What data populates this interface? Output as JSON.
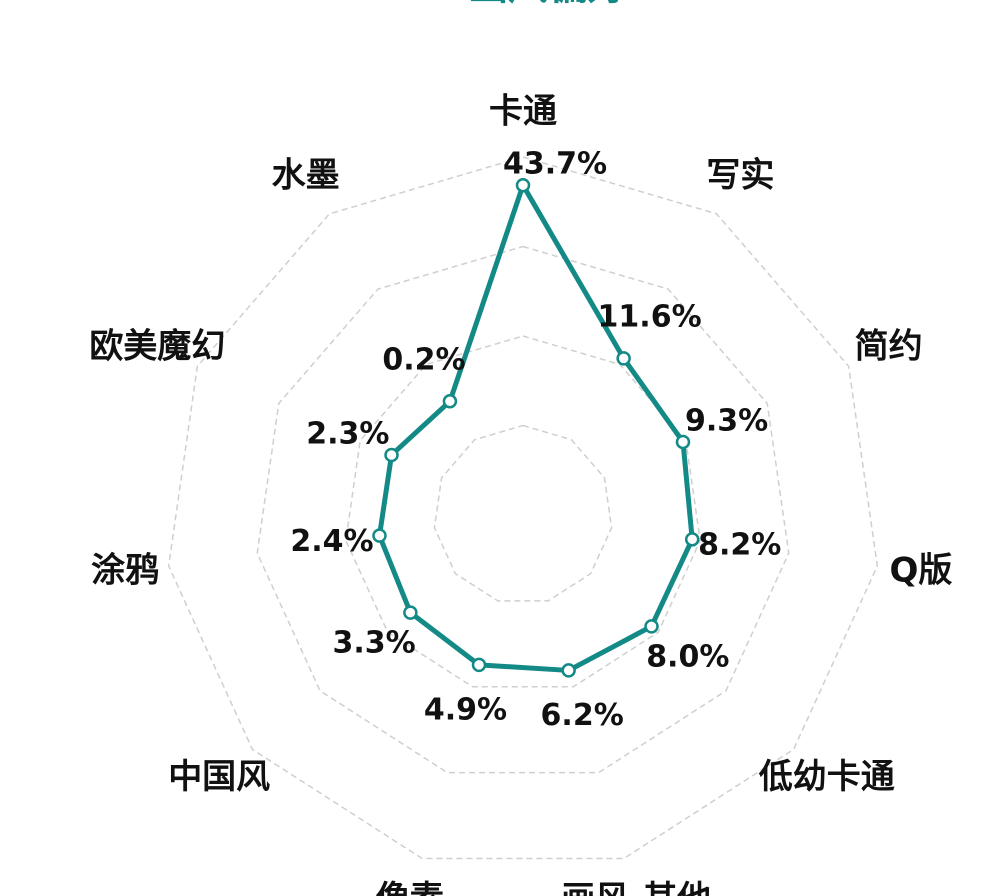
{
  "chart_data": {
    "type": "radar",
    "title": "画风偏好",
    "categories": [
      "卡通",
      "写实",
      "简约",
      "Q版",
      "低幼卡通",
      "画风-其他",
      "像素",
      "中国风",
      "涂鸦",
      "欧美魔幻",
      "水墨"
    ],
    "series": [
      {
        "color": "#148a87",
        "values": [
          43.7,
          11.6,
          9.3,
          8.2,
          8.0,
          6.2,
          4.9,
          3.3,
          2.4,
          2.3,
          0.2
        ],
        "value_labels": [
          "43.7%",
          "11.6%",
          "9.3%",
          "8.2%",
          "8.0%",
          "6.2%",
          "4.9%",
          "3.3%",
          "2.4%",
          "2.3%",
          "0.2%"
        ]
      }
    ],
    "ylim": [
      -30,
      50
    ],
    "yticks": [
      -10,
      10,
      30,
      50
    ],
    "grid": true
  }
}
